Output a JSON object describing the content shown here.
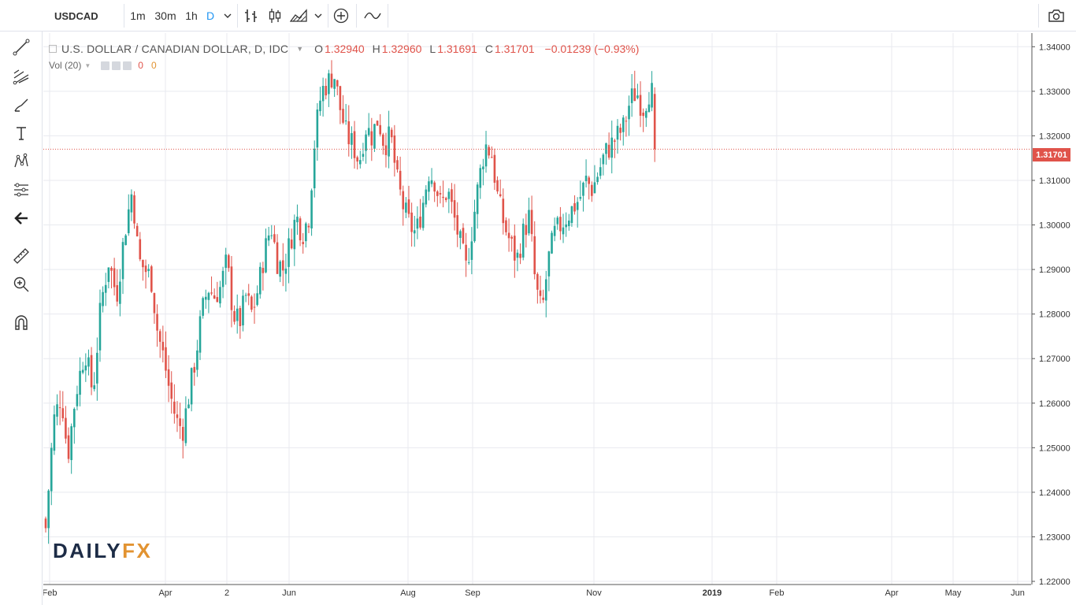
{
  "toolbar": {
    "symbol": "USDCAD",
    "intervals": [
      "1m",
      "30m",
      "1h",
      "D"
    ],
    "active_interval": "D",
    "icons": [
      "bar-chart-icon",
      "candles-icon",
      "area-chart-icon",
      "indicators-icon",
      "compare-icon",
      "snapshot-camera-icon"
    ]
  },
  "left_tools": [
    "crosshair-icon",
    "trend-line-icon",
    "fib-icon",
    "brush-icon",
    "text-icon",
    "pattern-icon",
    "prediction-icon",
    "back-arrow-icon",
    "ruler-icon",
    "zoom-icon",
    "magnet-icon"
  ],
  "legend": {
    "title": "U.S. DOLLAR / CANADIAN DOLLAR, D, IDC",
    "o_label": "O",
    "o": "1.32940",
    "h_label": "H",
    "h": "1.32960",
    "l_label": "L",
    "l": "1.31691",
    "c_label": "C",
    "c": "1.31701",
    "change": "−0.01239 (−0.93%)",
    "volume_label": "Vol (20)",
    "volume_values": [
      "0",
      "0"
    ]
  },
  "logo": {
    "daily": "DAILY",
    "fx": "FX"
  },
  "last_price": "1.31701",
  "colors": {
    "up": "#26a69a",
    "down": "#e0534a",
    "accent": "#2196f3",
    "grid": "#e8eaef"
  },
  "chart_data": {
    "type": "candlestick",
    "ylim": [
      1.22,
      1.342
    ],
    "y_ticks": [
      "1.34000",
      "1.33000",
      "1.32000",
      "1.31000",
      "1.30000",
      "1.29000",
      "1.28000",
      "1.27000",
      "1.26000",
      "1.25000",
      "1.24000",
      "1.23000",
      "1.22000"
    ],
    "x_ticks": [
      "Feb",
      "Apr",
      "2",
      "Jun",
      "Aug",
      "Sep",
      "Nov",
      "2019",
      "Feb",
      "Apr",
      "May",
      "Jun"
    ],
    "close_path": [
      [
        0,
        1.232
      ],
      [
        10,
        1.256
      ],
      [
        20,
        1.262
      ],
      [
        28,
        1.248
      ],
      [
        38,
        1.262
      ],
      [
        50,
        1.272
      ],
      [
        60,
        1.262
      ],
      [
        70,
        1.282
      ],
      [
        80,
        1.292
      ],
      [
        90,
        1.284
      ],
      [
        100,
        1.298
      ],
      [
        110,
        1.308
      ],
      [
        118,
        1.292
      ],
      [
        126,
        1.29
      ],
      [
        134,
        1.288
      ],
      [
        142,
        1.276
      ],
      [
        150,
        1.27
      ],
      [
        158,
        1.262
      ],
      [
        166,
        1.256
      ],
      [
        174,
        1.254
      ],
      [
        182,
        1.262
      ],
      [
        190,
        1.27
      ],
      [
        198,
        1.28
      ],
      [
        206,
        1.286
      ],
      [
        214,
        1.284
      ],
      [
        222,
        1.286
      ],
      [
        230,
        1.292
      ],
      [
        238,
        1.28
      ],
      [
        246,
        1.278
      ],
      [
        254,
        1.284
      ],
      [
        262,
        1.28
      ],
      [
        270,
        1.286
      ],
      [
        278,
        1.294
      ],
      [
        286,
        1.3
      ],
      [
        294,
        1.292
      ],
      [
        302,
        1.29
      ],
      [
        310,
        1.296
      ],
      [
        318,
        1.302
      ],
      [
        326,
        1.298
      ],
      [
        334,
        1.302
      ],
      [
        342,
        1.32
      ],
      [
        350,
        1.33
      ],
      [
        358,
        1.332
      ],
      [
        366,
        1.334
      ],
      [
        374,
        1.326
      ],
      [
        382,
        1.32
      ],
      [
        390,
        1.318
      ],
      [
        398,
        1.314
      ],
      [
        406,
        1.322
      ],
      [
        414,
        1.32
      ],
      [
        422,
        1.324
      ],
      [
        430,
        1.318
      ],
      [
        438,
        1.32
      ],
      [
        446,
        1.31
      ],
      [
        454,
        1.304
      ],
      [
        462,
        1.3
      ],
      [
        470,
        1.298
      ],
      [
        478,
        1.304
      ],
      [
        486,
        1.312
      ],
      [
        494,
        1.31
      ],
      [
        502,
        1.304
      ],
      [
        510,
        1.308
      ],
      [
        518,
        1.302
      ],
      [
        526,
        1.296
      ],
      [
        534,
        1.29
      ],
      [
        542,
        1.3
      ],
      [
        550,
        1.31
      ],
      [
        558,
        1.318
      ],
      [
        566,
        1.316
      ],
      [
        574,
        1.306
      ],
      [
        582,
        1.3
      ],
      [
        590,
        1.296
      ],
      [
        598,
        1.292
      ],
      [
        606,
        1.298
      ],
      [
        614,
        1.302
      ],
      [
        622,
        1.286
      ],
      [
        630,
        1.28
      ],
      [
        638,
        1.292
      ],
      [
        646,
        1.298
      ],
      [
        654,
        1.3
      ],
      [
        662,
        1.302
      ],
      [
        670,
        1.304
      ],
      [
        678,
        1.306
      ],
      [
        686,
        1.31
      ],
      [
        694,
        1.308
      ],
      [
        702,
        1.312
      ],
      [
        710,
        1.316
      ],
      [
        718,
        1.318
      ],
      [
        726,
        1.32
      ],
      [
        734,
        1.322
      ],
      [
        742,
        1.328
      ],
      [
        750,
        1.33
      ],
      [
        758,
        1.326
      ],
      [
        766,
        1.33
      ],
      [
        774,
        1.329
      ],
      [
        778,
        1.31701
      ]
    ]
  }
}
